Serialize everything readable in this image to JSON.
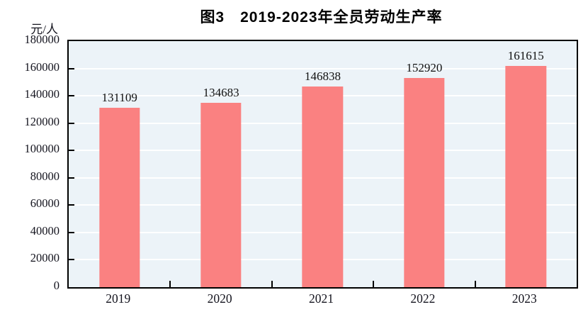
{
  "chart_data": {
    "type": "bar",
    "title": "图3　2019-2023年全员劳动生产率",
    "unit_label": "元/人",
    "categories": [
      "2019",
      "2020",
      "2021",
      "2022",
      "2023"
    ],
    "values": [
      131109,
      134683,
      146838,
      152920,
      161615
    ],
    "value_labels": [
      "131109",
      "134683",
      "146838",
      "152920",
      "161615"
    ],
    "ylim": [
      0,
      180000
    ],
    "ytick_step": 20000,
    "ytick_labels": [
      "0",
      "20000",
      "40000",
      "60000",
      "80000",
      "100000",
      "120000",
      "140000",
      "160000",
      "180000"
    ],
    "xlabel": "",
    "ylabel": "元/人",
    "grid": "horizontal",
    "legend": "none",
    "colors": {
      "bar_fill": "#fa8181",
      "plot_background": "#ecf3f8",
      "gridline": "#ffffff",
      "axis_border": "#000000",
      "text": "#111111",
      "page_background": "#ffffff"
    }
  }
}
